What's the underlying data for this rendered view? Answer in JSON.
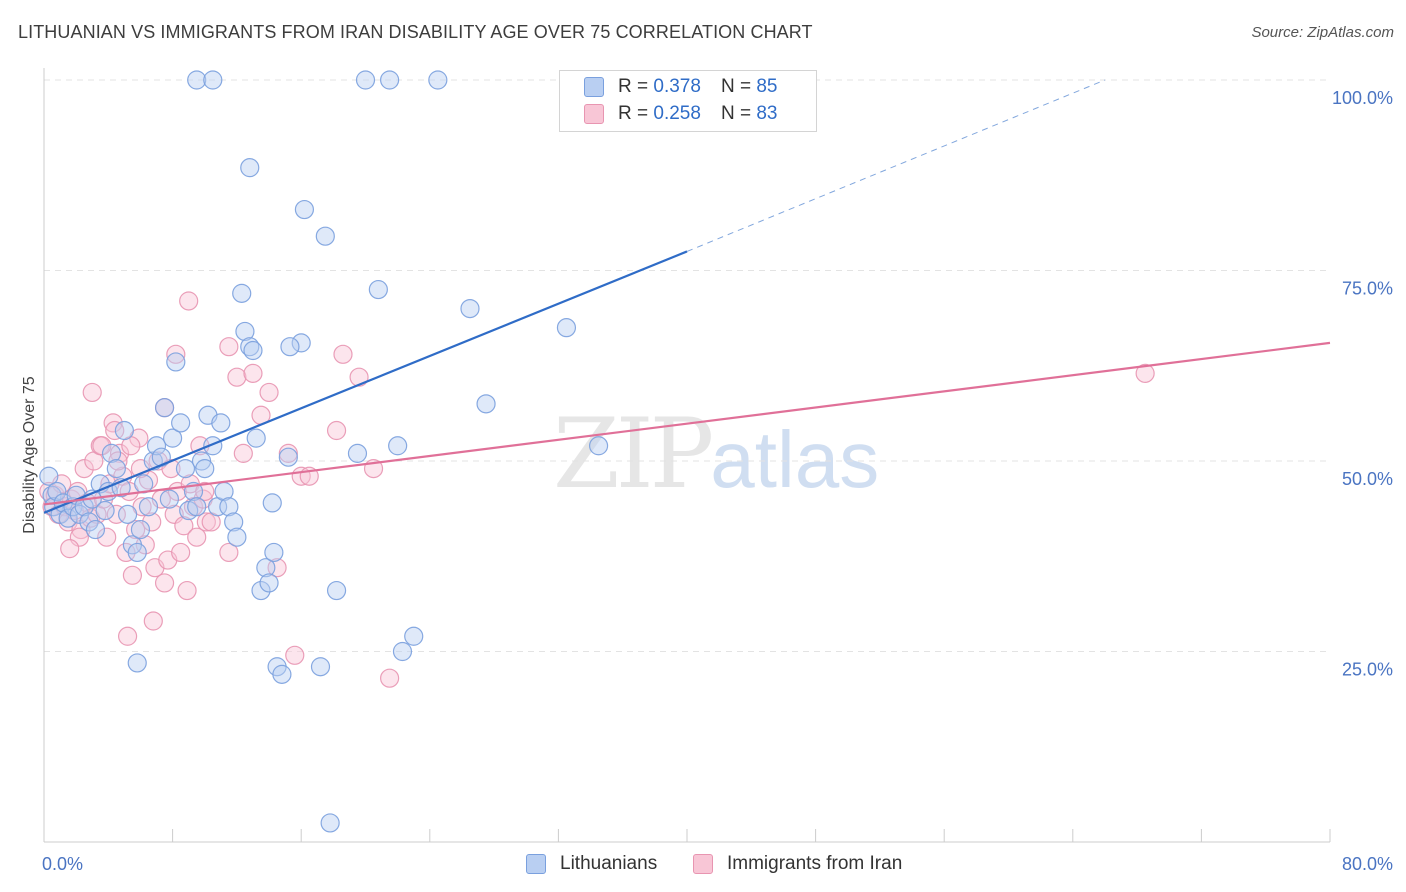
{
  "title": "LITHUANIAN VS IMMIGRANTS FROM IRAN DISABILITY AGE OVER 75 CORRELATION CHART",
  "source": "Source: ZipAtlas.com",
  "watermark": {
    "zip": "ZIP",
    "atlas": "atlas"
  },
  "legend_top": [
    {
      "r_label": "R =",
      "r_value": "0.378",
      "n_label": "N =",
      "n_value": "85"
    },
    {
      "r_label": "R =",
      "r_value": "0.258",
      "n_label": "N =",
      "n_value": "83"
    }
  ],
  "legend_bottom": [
    "Lithuanians",
    "Immigrants from Iran"
  ],
  "colors": {
    "blue_fill": "#b9cff2",
    "blue_stroke": "#7aa0de",
    "blue_line": "#2f6cc7",
    "pink_fill": "#f8c6d6",
    "pink_stroke": "#e895b1",
    "pink_line": "#e07098"
  },
  "chart_data": {
    "type": "scatter",
    "title": "LITHUANIAN VS IMMIGRANTS FROM IRAN DISABILITY AGE OVER 75 CORRELATION CHART",
    "xlabel": "",
    "ylabel": "Disability Age Over 75",
    "xlim": [
      0,
      80
    ],
    "ylim": [
      0,
      100
    ],
    "x_tick_labels": [
      "0.0%",
      "80.0%"
    ],
    "y_tick_labels": [
      "100.0%",
      "75.0%",
      "50.0%",
      "25.0%"
    ],
    "y_ticks": [
      100,
      75,
      50,
      25
    ],
    "grid": true,
    "legend_position": "top-center",
    "series": [
      {
        "name": "Lithuanians",
        "r": 0.378,
        "n": 85,
        "trend": {
          "x0": 0,
          "y0": 43.2,
          "x1": 40,
          "y1": 77.5,
          "dashed_to_x": 66,
          "dashed_to_y": 100
        },
        "points": [
          [
            0.3,
            48
          ],
          [
            0.5,
            45.5
          ],
          [
            0.6,
            44
          ],
          [
            0.8,
            46
          ],
          [
            1,
            43
          ],
          [
            1.2,
            44.5
          ],
          [
            1.5,
            42.5
          ],
          [
            1.8,
            44
          ],
          [
            2,
            45.5
          ],
          [
            2.2,
            43
          ],
          [
            2.5,
            44
          ],
          [
            2.8,
            42
          ],
          [
            3,
            45
          ],
          [
            3.2,
            41
          ],
          [
            3.5,
            47
          ],
          [
            3.8,
            43.5
          ],
          [
            4,
            46
          ],
          [
            4.2,
            51
          ],
          [
            4.5,
            49
          ],
          [
            4.8,
            46.5
          ],
          [
            5,
            54
          ],
          [
            5.2,
            43
          ],
          [
            5.5,
            39
          ],
          [
            5.8,
            38
          ],
          [
            6,
            41
          ],
          [
            6.2,
            47
          ],
          [
            6.5,
            44
          ],
          [
            6.8,
            50
          ],
          [
            7,
            52
          ],
          [
            7.3,
            50.5
          ],
          [
            7.5,
            57
          ],
          [
            7.8,
            45
          ],
          [
            8,
            53
          ],
          [
            8.2,
            63
          ],
          [
            8.5,
            55
          ],
          [
            8.8,
            49
          ],
          [
            9,
            43.5
          ],
          [
            9.3,
            46
          ],
          [
            9.5,
            44
          ],
          [
            9.8,
            50
          ],
          [
            10,
            49
          ],
          [
            10.2,
            56
          ],
          [
            10.5,
            52
          ],
          [
            10.8,
            44
          ],
          [
            11,
            55
          ],
          [
            11.2,
            46
          ],
          [
            11.5,
            44
          ],
          [
            11.8,
            42
          ],
          [
            12,
            40
          ],
          [
            12.3,
            72
          ],
          [
            12.5,
            67
          ],
          [
            12.8,
            65
          ],
          [
            13,
            64.5
          ],
          [
            13.2,
            53
          ],
          [
            13.5,
            33
          ],
          [
            13.8,
            36
          ],
          [
            14,
            34
          ],
          [
            14.3,
            38
          ],
          [
            14.5,
            23
          ],
          [
            14.8,
            22
          ],
          [
            5.8,
            23.5
          ],
          [
            9.5,
            100
          ],
          [
            10.5,
            100
          ],
          [
            20,
            100
          ],
          [
            21.5,
            100
          ],
          [
            24.5,
            100
          ],
          [
            12.8,
            88.5
          ],
          [
            16.2,
            83
          ],
          [
            17.5,
            79.5
          ],
          [
            20.8,
            72.5
          ],
          [
            16,
            65.5
          ],
          [
            15.3,
            65
          ],
          [
            17.2,
            23
          ],
          [
            18.2,
            33
          ],
          [
            19.5,
            51
          ],
          [
            22,
            52
          ],
          [
            22.3,
            25
          ],
          [
            23,
            27
          ],
          [
            26.5,
            70
          ],
          [
            27.5,
            57.5
          ],
          [
            32.5,
            67.5
          ],
          [
            34.5,
            52
          ],
          [
            17.8,
            2.5
          ],
          [
            15.2,
            50.5
          ],
          [
            14.2,
            44.5
          ]
        ]
      },
      {
        "name": "Immigrants from Iran",
        "r": 0.258,
        "n": 83,
        "trend": {
          "x0": 0,
          "y0": 44.3,
          "x1": 80,
          "y1": 65.5
        },
        "points": [
          [
            0.3,
            46
          ],
          [
            0.5,
            44
          ],
          [
            0.7,
            45.5
          ],
          [
            0.9,
            43
          ],
          [
            1.1,
            47
          ],
          [
            1.3,
            44
          ],
          [
            1.5,
            42
          ],
          [
            1.7,
            45
          ],
          [
            1.9,
            43.5
          ],
          [
            2.1,
            46
          ],
          [
            2.3,
            41
          ],
          [
            2.5,
            49
          ],
          [
            2.7,
            44.5
          ],
          [
            2.9,
            42.5
          ],
          [
            3.1,
            50
          ],
          [
            3.3,
            43
          ],
          [
            3.5,
            52
          ],
          [
            3.7,
            45
          ],
          [
            3.9,
            40
          ],
          [
            4.1,
            47
          ],
          [
            4.3,
            55
          ],
          [
            4.5,
            43
          ],
          [
            4.7,
            51
          ],
          [
            4.9,
            48
          ],
          [
            5.1,
            38
          ],
          [
            5.3,
            46
          ],
          [
            5.5,
            35
          ],
          [
            5.7,
            41
          ],
          [
            5.9,
            53
          ],
          [
            6.1,
            44
          ],
          [
            6.3,
            39
          ],
          [
            6.5,
            47.5
          ],
          [
            6.7,
            42
          ],
          [
            6.9,
            36
          ],
          [
            7.1,
            50
          ],
          [
            7.3,
            45
          ],
          [
            7.5,
            34
          ],
          [
            7.7,
            37
          ],
          [
            7.9,
            49
          ],
          [
            8.1,
            43
          ],
          [
            8.3,
            46
          ],
          [
            8.5,
            38
          ],
          [
            8.7,
            41.5
          ],
          [
            8.9,
            33
          ],
          [
            9.1,
            47
          ],
          [
            9.3,
            44
          ],
          [
            9.5,
            40
          ],
          [
            9.7,
            52
          ],
          [
            9.9,
            45
          ],
          [
            10.1,
            42
          ],
          [
            3,
            59
          ],
          [
            3.6,
            52
          ],
          [
            4.4,
            54
          ],
          [
            5.4,
            52
          ],
          [
            6,
            49
          ],
          [
            6.8,
            29
          ],
          [
            7.5,
            57
          ],
          [
            8.2,
            64
          ],
          [
            9,
            71
          ],
          [
            10.4,
            42
          ],
          [
            11.5,
            65
          ],
          [
            12,
            61
          ],
          [
            12.4,
            51
          ],
          [
            13,
            61.5
          ],
          [
            13.5,
            56
          ],
          [
            14,
            59
          ],
          [
            14.5,
            36
          ],
          [
            15.2,
            51
          ],
          [
            15.6,
            24.5
          ],
          [
            16,
            48
          ],
          [
            16.5,
            48
          ],
          [
            18.2,
            54
          ],
          [
            18.6,
            64
          ],
          [
            19.6,
            61
          ],
          [
            20.5,
            49
          ],
          [
            21.5,
            21.5
          ],
          [
            11.5,
            38
          ],
          [
            10,
            46
          ],
          [
            5.2,
            27
          ],
          [
            4.6,
            50
          ],
          [
            2.2,
            40
          ],
          [
            1.6,
            38.5
          ],
          [
            68.5,
            61.5
          ]
        ]
      }
    ]
  }
}
